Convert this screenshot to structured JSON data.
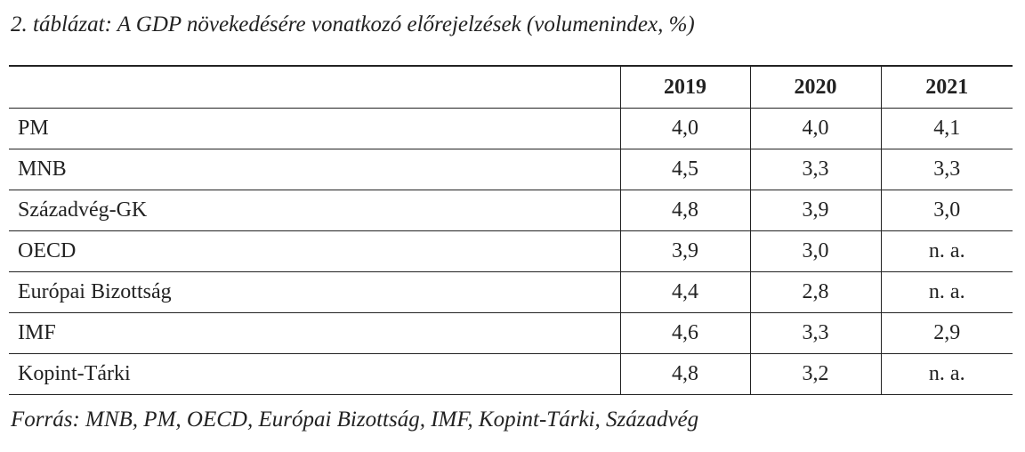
{
  "title": "2. táblázat: A GDP növekedésére vonatkozó előrejelzések (volumenindex, %)",
  "table": {
    "header": [
      "2019",
      "2020",
      "2021"
    ],
    "rows": [
      [
        "PM",
        "4,0",
        "4,0",
        "4,1"
      ],
      [
        "MNB",
        "4,5",
        "3,3",
        "3,3"
      ],
      [
        "Századvég-GK",
        "4,8",
        "3,9",
        "3,0"
      ],
      [
        "OECD",
        "3,9",
        "3,0",
        "n. a."
      ],
      [
        "Európai Bizottság",
        "4,4",
        "2,8",
        "n. a."
      ],
      [
        "IMF",
        "4,6",
        "3,3",
        "2,9"
      ],
      [
        "Kopint-Tárki",
        "4,8",
        "3,2",
        "n. a."
      ]
    ]
  },
  "source": "Forrás: MNB, PM, OECD, Európai Bizottság, IMF, Kopint-Tárki, Századvég"
}
